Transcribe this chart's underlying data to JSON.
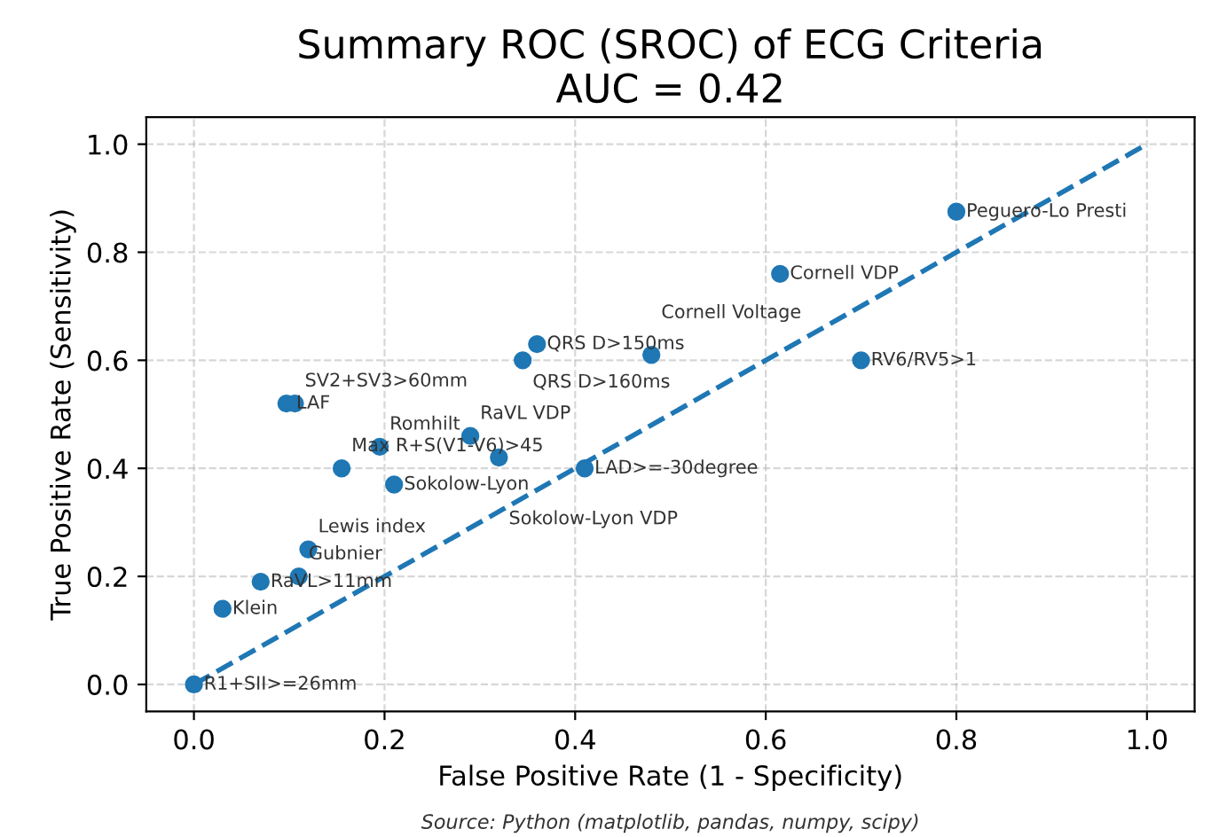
{
  "chart_data": {
    "type": "scatter",
    "title": "Summary ROC (SROC) of ECG Criteria\nAUC = 0.42",
    "xlabel": "False Positive Rate (1 - Specificity)",
    "ylabel": "True Positive Rate (Sensitivity)",
    "series": [
      {
        "type": "scatter",
        "color": "#1f77b4",
        "x": [
          0.0,
          0.03,
          0.07,
          0.11,
          0.12,
          0.21,
          0.155,
          0.195,
          0.29,
          0.32,
          0.41,
          0.097,
          0.106,
          0.36,
          0.345,
          0.48,
          0.7,
          0.615,
          0.8
        ],
        "values": [
          0.0,
          0.14,
          0.19,
          0.2,
          0.25,
          0.37,
          0.4,
          0.44,
          0.46,
          0.42,
          0.4,
          0.52,
          0.52,
          0.63,
          0.6,
          0.61,
          0.6,
          0.76,
          0.875
        ]
      },
      {
        "type": "line",
        "color": "#1f77b4",
        "x": [
          0,
          1
        ],
        "values": [
          0,
          1
        ],
        "line_style": "dashed"
      }
    ],
    "xlim": [
      -0.05,
      1.05
    ],
    "ylim": [
      -0.05,
      1.05
    ],
    "xticks": [
      {
        "value": 0.0,
        "label": "0.0"
      },
      0.2,
      0.4,
      0.6,
      0.8,
      {
        "value": 1.0,
        "label": "1.0"
      }
    ],
    "yticks": [
      {
        "value": 0.0,
        "label": "0.0"
      },
      0.2,
      0.4,
      0.6,
      0.8,
      {
        "value": 1.0,
        "label": "1.0"
      }
    ],
    "grid": true,
    "annotations": [
      {
        "text": "R1+SII>=26mm",
        "x": 0.0,
        "y": 0.0
      },
      {
        "text": "Klein",
        "x": 0.03,
        "y": 0.14
      },
      {
        "text": "RaVL>11mm",
        "x": 0.07,
        "y": 0.19
      },
      {
        "text": "Gubnier",
        "x": 0.11,
        "y": 0.2
      },
      {
        "text": "Lewis index",
        "x": 0.12,
        "y": 0.25
      },
      {
        "text": "Sokolow-Lyon",
        "x": 0.21,
        "y": 0.37
      },
      {
        "text": "Max R+S(V1-V6)>45",
        "x": 0.155,
        "y": 0.4
      },
      {
        "text": "Romhilt",
        "x": 0.195,
        "y": 0.44
      },
      {
        "text": "RaVL VDP",
        "x": 0.29,
        "y": 0.46
      },
      {
        "text": "Sokolow-Lyon VDP",
        "x": 0.32,
        "y": 0.42
      },
      {
        "text": "LAD>=-30degree",
        "x": 0.41,
        "y": 0.4
      },
      {
        "text": "LAF",
        "x": 0.097,
        "y": 0.52
      },
      {
        "text": "SV2+SV3>60mm",
        "x": 0.106,
        "y": 0.52
      },
      {
        "text": "QRS D>150ms",
        "x": 0.36,
        "y": 0.63
      },
      {
        "text": "QRS D>160ms",
        "x": 0.345,
        "y": 0.6
      },
      {
        "text": "Cornell Voltage",
        "x": 0.48,
        "y": 0.61
      },
      {
        "text": "RV6/RV5>1",
        "x": 0.7,
        "y": 0.6
      },
      {
        "text": "Cornell VDP",
        "x": 0.615,
        "y": 0.76
      },
      {
        "text": "Peguero-Lo Presti",
        "x": 0.8,
        "y": 0.875
      },
      "Source: Python (matplotlib, pandas, numpy, scipy)"
    ]
  }
}
